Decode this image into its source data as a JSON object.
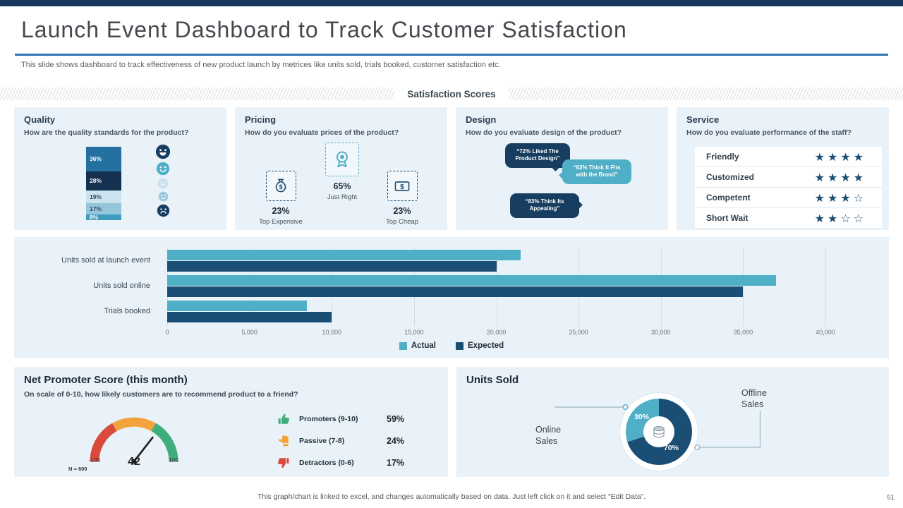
{
  "slide": {
    "title": "Launch Event Dashboard to Track Customer Satisfaction",
    "subtitle": "This slide shows dashboard to track effectiveness of new product launch by metrices like units sold, trials booked, customer satisfaction etc.",
    "section_title": "Satisfaction Scores",
    "footer": "This graph/chart is linked to excel, and changes automatically based on data. Just left click on it and select “Edit Data”.",
    "page_number": "51"
  },
  "palette": {
    "teal": "#4FAFC6",
    "navy": "#1B4E74",
    "dark_navy": "#16395C",
    "accent_line": "#2E75B6",
    "panel_bg": "#E9F2F8"
  },
  "quality": {
    "title": "Quality",
    "question": "How are the quality standards for the product?",
    "faces": [
      {
        "name": "grin-face-icon",
        "mood": "grin",
        "color": "#173E60",
        "size": 22
      },
      {
        "name": "smile-face-icon",
        "mood": "smile",
        "color": "#4FAFC6",
        "size": 20
      },
      {
        "name": "neutral-face-icon",
        "mood": "neutral",
        "color": "#C9E1EE",
        "size": 16
      },
      {
        "name": "meh-face-icon",
        "mood": "smile",
        "color": "#9CCBDE",
        "size": 15
      },
      {
        "name": "sad-face-icon",
        "mood": "sad",
        "color": "#173E60",
        "size": 19
      }
    ]
  },
  "pricing": {
    "title": "Pricing",
    "question": "How do you evaluate prices of the product?",
    "items": [
      {
        "value": "23%",
        "label": "Top Expensive",
        "icon": "money-bag-icon",
        "position": "left"
      },
      {
        "value": "65%",
        "label": "Just Right",
        "icon": "award-ribbon-icon",
        "position": "center"
      },
      {
        "value": "23%",
        "label": "Top Cheap",
        "icon": "dollar-note-icon",
        "position": "right"
      }
    ]
  },
  "design": {
    "title": "Design",
    "question": "How do you evaluate design of the product?",
    "bubbles": [
      {
        "text": "“72% Liked The Product Design”",
        "color": "#173E60"
      },
      {
        "text": "“63% Think It Fits with the Brand”",
        "color": "#4FAFC6"
      },
      {
        "text": "“83% Think Its Appealing”",
        "color": "#173E60"
      }
    ]
  },
  "service": {
    "title": "Service",
    "question": "How do you evaluate performance of the staff?",
    "rows": [
      {
        "label": "Friendly",
        "stars": 4,
        "max": 4
      },
      {
        "label": "Customized",
        "stars": 4,
        "max": 4
      },
      {
        "label": "Competent",
        "stars": 3,
        "max": 4
      },
      {
        "label": "Short Wait",
        "stars": 2,
        "max": 4
      }
    ]
  },
  "nps": {
    "title": "Net Promoter Score (this month)",
    "question": "On scale of 0-10, how likely customers are to recommend product to a friend?",
    "legend": [
      {
        "icon": "thumb-up-icon",
        "label": "Promoters (9-10)",
        "value": "59%",
        "color": "#3FAE7A"
      },
      {
        "icon": "thumb-side-icon",
        "label": "Passive (7-8)",
        "value": "24%",
        "color": "#F2A33C"
      },
      {
        "icon": "thumb-down-icon",
        "label": "Detractors (0-6)",
        "value": "17%",
        "color": "#D94A3D"
      }
    ]
  },
  "units": {
    "title": "Units Sold"
  },
  "chart_data": [
    {
      "id": "quality_satisfaction_split",
      "type": "bar",
      "subtype": "stacked-vertical",
      "labels": [
        "36%",
        "28%",
        "19%",
        "17%",
        "8%"
      ],
      "values": [
        36,
        28,
        19,
        17,
        8
      ],
      "colors": [
        "#2470A0",
        "#14324F",
        "#CBE2EF",
        "#94C6DB",
        "#3E9DBF"
      ],
      "text_colors": [
        "#FFFFFF",
        "#FFFFFF",
        "#33475B",
        "#33475B",
        "#FFFFFF"
      ]
    },
    {
      "id": "launch_metrics_bar",
      "type": "bar",
      "orientation": "horizontal",
      "categories": [
        "Units sold at launch event",
        "Units sold online",
        "Trials booked"
      ],
      "series": [
        {
          "name": "Actual",
          "color": "#4FAFC6",
          "values": [
            21500,
            37000,
            8500
          ]
        },
        {
          "name": "Expected",
          "color": "#1B4E74",
          "values": [
            20000,
            35000,
            10000
          ]
        }
      ],
      "xlim": [
        0,
        40000
      ],
      "xtick_interval": 5000,
      "xtick_labels": [
        "0",
        "5,000",
        "10,000",
        "15,000",
        "20,000",
        "25,000",
        "30,000",
        "35,000",
        "40,000"
      ],
      "grid": true,
      "legend_position": "bottom"
    },
    {
      "id": "nps_gauge",
      "type": "gauge",
      "value": 42,
      "min": -100,
      "max": 100,
      "min_label": "-100",
      "max_label": "100",
      "n_label": "N = 600",
      "segments": [
        {
          "from": -100,
          "to": -33,
          "color": "#D94A3D"
        },
        {
          "from": -33,
          "to": 33,
          "color": "#F2A33C"
        },
        {
          "from": 33,
          "to": 100,
          "color": "#3FAE7A"
        }
      ]
    },
    {
      "id": "units_sold_pie",
      "type": "pie",
      "title": "Units Sold",
      "slices": [
        {
          "label": "Online Sales",
          "value": 30,
          "pct_label": "30%",
          "color": "#4FAFC6"
        },
        {
          "label": "Offline Sales",
          "value": 70,
          "pct_label": "70%",
          "color": "#1B4E74"
        }
      ]
    }
  ]
}
